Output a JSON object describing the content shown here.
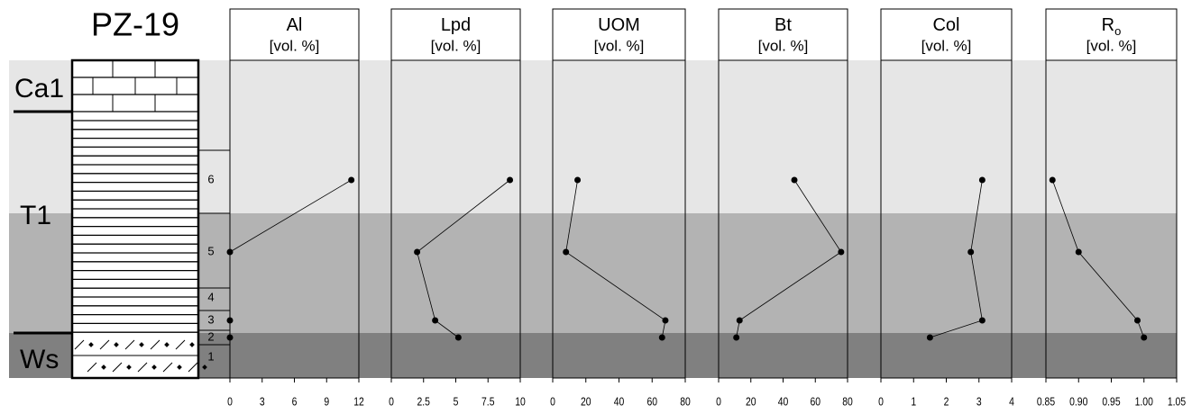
{
  "chart_data": {
    "type": "line",
    "title": "PZ-19",
    "units": [
      "Ca1",
      "T1",
      "Ws"
    ],
    "sample_labels": [
      "6",
      "5",
      "4",
      "3",
      "2",
      "1"
    ],
    "categories": [
      "6",
      "5",
      "3",
      "2"
    ],
    "marker_color": "#000000",
    "band_colors": [
      "#e6e6e6",
      "#b3b3b3",
      "#808080"
    ],
    "series": [
      {
        "name": "Al",
        "unit": "[vol. %]",
        "values": [
          11.3,
          0,
          0,
          0
        ],
        "xlim": [
          0,
          12
        ],
        "xticks": [
          0,
          3,
          6,
          9,
          12
        ]
      },
      {
        "name": "Lpd",
        "unit": "[vol. %]",
        "values": [
          9.2,
          2.0,
          3.4,
          5.2
        ],
        "xlim": [
          0,
          10
        ],
        "xticks": [
          0,
          2.5,
          5,
          7.5,
          10
        ]
      },
      {
        "name": "UOM",
        "unit": "[vol. %]",
        "values": [
          15,
          8,
          68,
          66
        ],
        "xlim": [
          0,
          80
        ],
        "xticks": [
          0,
          20,
          40,
          60,
          80
        ]
      },
      {
        "name": "Bt",
        "unit": "[vol. %]",
        "values": [
          47,
          76,
          13,
          11
        ],
        "xlim": [
          0,
          80
        ],
        "xticks": [
          0,
          20,
          40,
          60,
          80
        ]
      },
      {
        "name": "Col",
        "unit": "[vol. %]",
        "values": [
          3.1,
          2.75,
          3.1,
          1.5
        ],
        "xlim": [
          0,
          4
        ],
        "xticks": [
          0,
          1,
          2,
          3,
          4
        ]
      },
      {
        "name": "R",
        "name_sub": "o",
        "unit": "[vol. %]",
        "values": [
          0.86,
          0.9,
          0.99,
          1.0
        ],
        "xlim": [
          0.85,
          1.05
        ],
        "xticks": [
          0.85,
          {
            "value": 0.9,
            "label": "0.90"
          },
          0.95,
          {
            "value": 1.0,
            "label": "1.00"
          },
          1.05
        ]
      }
    ]
  }
}
